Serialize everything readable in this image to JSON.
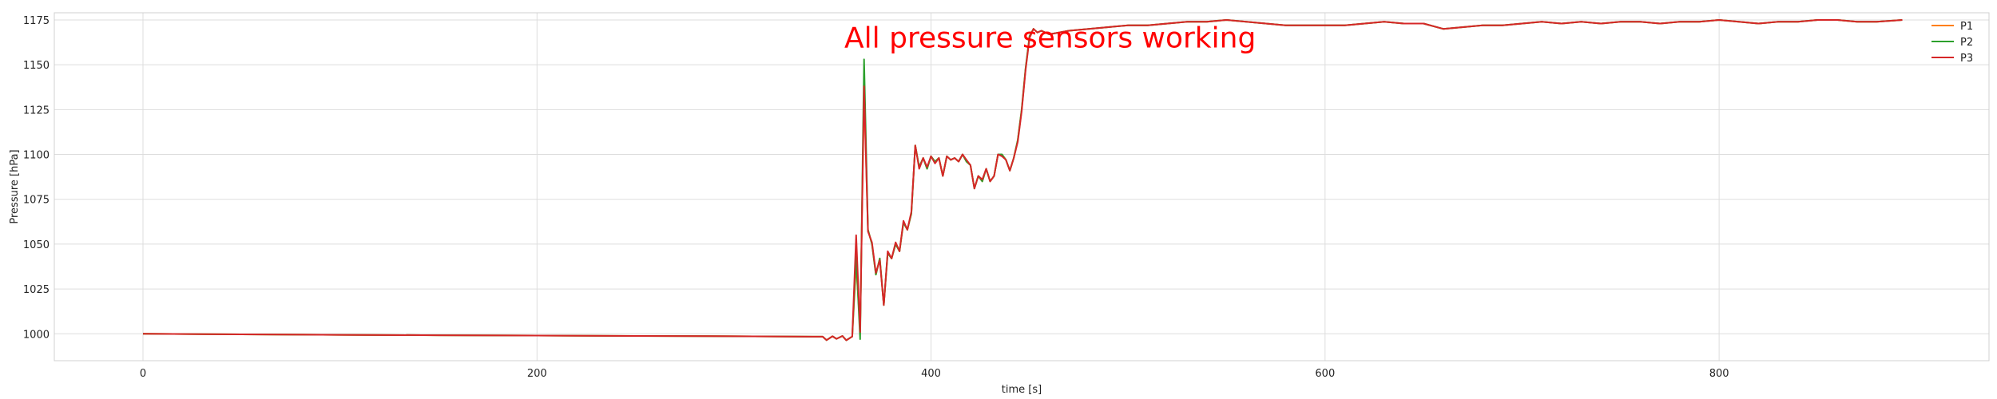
{
  "chart_data": {
    "type": "line",
    "title": "",
    "xlabel": "time [s]",
    "ylabel": "Pressure [hPa]",
    "xlim": [
      -45,
      937
    ],
    "ylim": [
      985,
      1179
    ],
    "xticks": [
      0,
      200,
      400,
      600,
      800
    ],
    "yticks": [
      1000,
      1025,
      1050,
      1075,
      1100,
      1125,
      1150,
      1175
    ],
    "grid": true,
    "legend": "top-right",
    "annotation": {
      "text": "All pressure sensors working",
      "x": 356,
      "y": 1165,
      "color": "#ff0000"
    },
    "series": [
      {
        "name": "P1",
        "color": "#ff7f0e",
        "x": [
          0,
          50,
          100,
          150,
          200,
          250,
          300,
          345,
          347,
          350,
          352,
          355,
          357,
          360,
          362,
          364,
          366,
          368,
          370,
          372,
          374,
          376,
          378,
          380,
          382,
          384,
          386,
          388,
          390,
          392,
          394,
          396,
          398,
          400,
          402,
          404,
          406,
          408,
          410,
          412,
          414,
          416,
          418,
          420,
          422,
          424,
          426,
          428,
          430,
          432,
          434,
          436,
          438,
          440,
          442,
          444,
          446,
          448,
          450,
          452,
          454,
          456,
          460,
          470,
          480,
          490,
          500,
          510,
          520,
          530,
          540,
          550,
          560,
          570,
          580,
          590,
          600,
          610,
          620,
          630,
          640,
          650,
          660,
          670,
          680,
          690,
          700,
          710,
          720,
          730,
          740,
          750,
          760,
          770,
          780,
          790,
          800,
          810,
          820,
          830,
          840,
          850,
          860,
          870,
          880,
          893
        ],
        "y": [
          1000,
          999.7,
          999.4,
          999.2,
          999,
          998.8,
          998.6,
          998.4,
          996.5,
          998.6,
          997.2,
          998.8,
          996.4,
          998.5,
          1039,
          1003,
          1136,
          1058,
          1050,
          1033,
          1042,
          1016,
          1045,
          1042,
          1050,
          1046,
          1062,
          1058,
          1067,
          1105,
          1093,
          1098,
          1092,
          1099,
          1096,
          1098,
          1088,
          1099,
          1097,
          1098,
          1096,
          1100,
          1096,
          1094,
          1081,
          1088,
          1085,
          1092,
          1085,
          1088,
          1100,
          1100,
          1097,
          1091,
          1098,
          1108,
          1125,
          1148,
          1166,
          1170,
          1168,
          1169,
          1167,
          1169,
          1170,
          1171,
          1172,
          1172,
          1173,
          1174,
          1174,
          1175,
          1174,
          1173,
          1172,
          1172,
          1172,
          1172,
          1173,
          1174,
          1173,
          1173,
          1170,
          1171,
          1172,
          1172,
          1173,
          1174,
          1173,
          1174,
          1173,
          1174,
          1174,
          1173,
          1174,
          1174,
          1175,
          1174,
          1173,
          1174,
          1174,
          1175,
          1175,
          1174,
          1174,
          1175
        ]
      },
      {
        "name": "P2",
        "color": "#2ca02c",
        "x": [
          0,
          50,
          100,
          150,
          200,
          250,
          300,
          345,
          347,
          350,
          352,
          355,
          357,
          360,
          362,
          364,
          366,
          368,
          370,
          372,
          374,
          376,
          378,
          380,
          382,
          384,
          386,
          388,
          390,
          392,
          394,
          396,
          398,
          400,
          402,
          404,
          406,
          408,
          410,
          412,
          414,
          416,
          418,
          420,
          422,
          424,
          426,
          428,
          430,
          432,
          434,
          436,
          438,
          440,
          442,
          444,
          446,
          448,
          450,
          452,
          454,
          456,
          460,
          470,
          480,
          490,
          500,
          510,
          520,
          530,
          540,
          550,
          560,
          570,
          580,
          590,
          600,
          610,
          620,
          630,
          640,
          650,
          660,
          670,
          680,
          690,
          700,
          710,
          720,
          730,
          740,
          750,
          760,
          770,
          780,
          790,
          800,
          810,
          820,
          830,
          840,
          850,
          860,
          870,
          880,
          893
        ],
        "y": [
          1000,
          999.7,
          999.4,
          999.2,
          999,
          998.8,
          998.6,
          998.4,
          996.5,
          998.6,
          997.2,
          998.8,
          996.4,
          998.5,
          1043,
          997,
          1153,
          1058,
          1050,
          1033,
          1042,
          1016,
          1045,
          1042,
          1050,
          1046,
          1062,
          1058,
          1067,
          1105,
          1093,
          1098,
          1092,
          1099,
          1096,
          1098,
          1088,
          1099,
          1097,
          1098,
          1096,
          1100,
          1096,
          1094,
          1081,
          1088,
          1085,
          1092,
          1085,
          1088,
          1100,
          1100,
          1097,
          1091,
          1098,
          1108,
          1125,
          1148,
          1166,
          1170,
          1168,
          1169,
          1167,
          1169,
          1170,
          1171,
          1172,
          1172,
          1173,
          1174,
          1174,
          1175,
          1174,
          1173,
          1172,
          1172,
          1172,
          1172,
          1173,
          1174,
          1173,
          1173,
          1170,
          1171,
          1172,
          1172,
          1173,
          1174,
          1173,
          1174,
          1173,
          1174,
          1174,
          1173,
          1174,
          1174,
          1175,
          1174,
          1173,
          1174,
          1174,
          1175,
          1175,
          1174,
          1174,
          1175
        ]
      },
      {
        "name": "P3",
        "color": "#d62728",
        "x": [
          0,
          50,
          100,
          150,
          200,
          250,
          300,
          345,
          347,
          350,
          352,
          355,
          357,
          360,
          362,
          364,
          366,
          368,
          370,
          372,
          374,
          376,
          378,
          380,
          382,
          384,
          386,
          388,
          390,
          392,
          394,
          396,
          398,
          400,
          402,
          404,
          406,
          408,
          410,
          412,
          414,
          416,
          418,
          420,
          422,
          424,
          426,
          428,
          430,
          432,
          434,
          436,
          438,
          440,
          442,
          444,
          446,
          448,
          450,
          452,
          454,
          456,
          460,
          470,
          480,
          490,
          500,
          510,
          520,
          530,
          540,
          550,
          560,
          570,
          580,
          590,
          600,
          610,
          620,
          630,
          640,
          650,
          660,
          670,
          680,
          690,
          700,
          710,
          720,
          730,
          740,
          750,
          760,
          770,
          780,
          790,
          800,
          810,
          820,
          830,
          840,
          850,
          860,
          870,
          880,
          893
        ],
        "y": [
          1000,
          999.7,
          999.4,
          999.2,
          999,
          998.8,
          998.6,
          998.4,
          996.5,
          998.6,
          997.2,
          998.8,
          996.4,
          998.5,
          1055,
          1001,
          1138,
          1057,
          1051,
          1034,
          1041,
          1016,
          1046,
          1042,
          1051,
          1046,
          1063,
          1058,
          1068,
          1105,
          1092,
          1098,
          1093,
          1099,
          1095,
          1098,
          1088,
          1099,
          1097,
          1098,
          1096,
          1100,
          1097,
          1094,
          1081,
          1088,
          1086,
          1092,
          1085,
          1088,
          1100,
          1099,
          1097,
          1091,
          1098,
          1107,
          1124,
          1147,
          1165,
          1170,
          1168,
          1169,
          1167,
          1169,
          1170,
          1171,
          1172,
          1172,
          1173,
          1174,
          1174,
          1175,
          1174,
          1173,
          1172,
          1172,
          1172,
          1172,
          1173,
          1174,
          1173,
          1173,
          1170,
          1171,
          1172,
          1172,
          1173,
          1174,
          1173,
          1174,
          1173,
          1174,
          1174,
          1173,
          1174,
          1174,
          1175,
          1174,
          1173,
          1174,
          1174,
          1175,
          1175,
          1174,
          1174,
          1175
        ]
      }
    ]
  }
}
